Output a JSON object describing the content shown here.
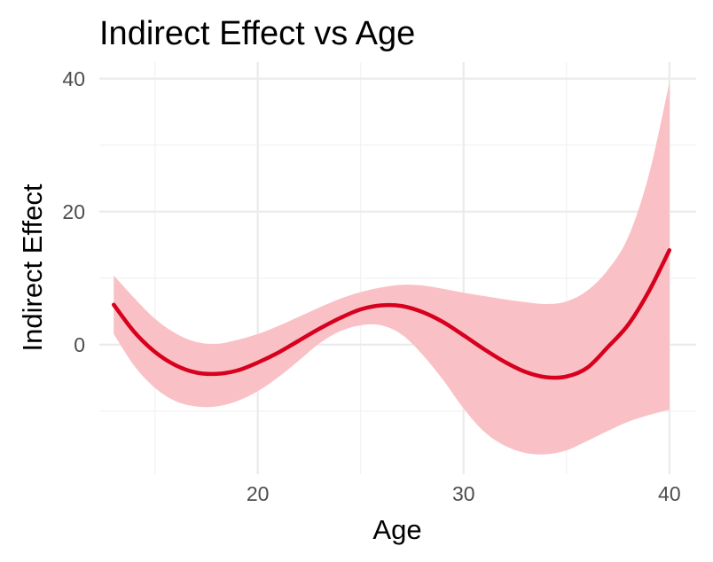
{
  "chart_data": {
    "type": "line",
    "title": "Indirect Effect vs Age",
    "xlabel": "Age",
    "ylabel": "Indirect Effect",
    "xlim": [
      12.3,
      41.3
    ],
    "ylim": [
      -19.5,
      42.5
    ],
    "x_ticks": [
      20,
      30,
      40
    ],
    "y_ticks": [
      0,
      20,
      40
    ],
    "x_minor_ticks": [
      15,
      25,
      35
    ],
    "y_minor_ticks": [
      -10,
      10,
      30
    ],
    "grid": true,
    "legend": "none",
    "line_color": "#d7001f",
    "band_color": "#f9c1c5",
    "series": [
      {
        "x": [
          13,
          14,
          15,
          16,
          17,
          18,
          19,
          20,
          21,
          22,
          23,
          24,
          25,
          26,
          27,
          28,
          29,
          30,
          31,
          32,
          33,
          34,
          35,
          36,
          37,
          38,
          39,
          40
        ],
        "y": [
          6.0,
          1.9,
          -1.1,
          -3.1,
          -4.2,
          -4.4,
          -3.9,
          -2.7,
          -1.2,
          0.6,
          2.4,
          4.0,
          5.3,
          5.9,
          5.8,
          4.9,
          3.4,
          1.4,
          -0.7,
          -2.6,
          -4.1,
          -4.9,
          -4.8,
          -3.5,
          -0.4,
          3.0,
          8.0,
          14.2
        ],
        "lower": [
          1.6,
          -3.2,
          -6.5,
          -8.5,
          -9.3,
          -9.3,
          -8.5,
          -7.0,
          -4.9,
          -2.4,
          0.2,
          2.0,
          2.9,
          2.9,
          1.5,
          -1.5,
          -5.3,
          -9.6,
          -13.1,
          -15.2,
          -16.3,
          -16.5,
          -15.9,
          -14.5,
          -13.0,
          -11.6,
          -10.6,
          -9.8
        ],
        "upper": [
          10.4,
          7.0,
          3.9,
          1.7,
          0.4,
          0.1,
          0.7,
          1.6,
          2.8,
          4.2,
          5.6,
          6.9,
          7.9,
          8.6,
          9.0,
          8.9,
          8.4,
          7.8,
          7.3,
          6.8,
          6.4,
          6.1,
          6.5,
          8.1,
          11.2,
          16.2,
          25.5,
          39.4
        ]
      }
    ]
  }
}
